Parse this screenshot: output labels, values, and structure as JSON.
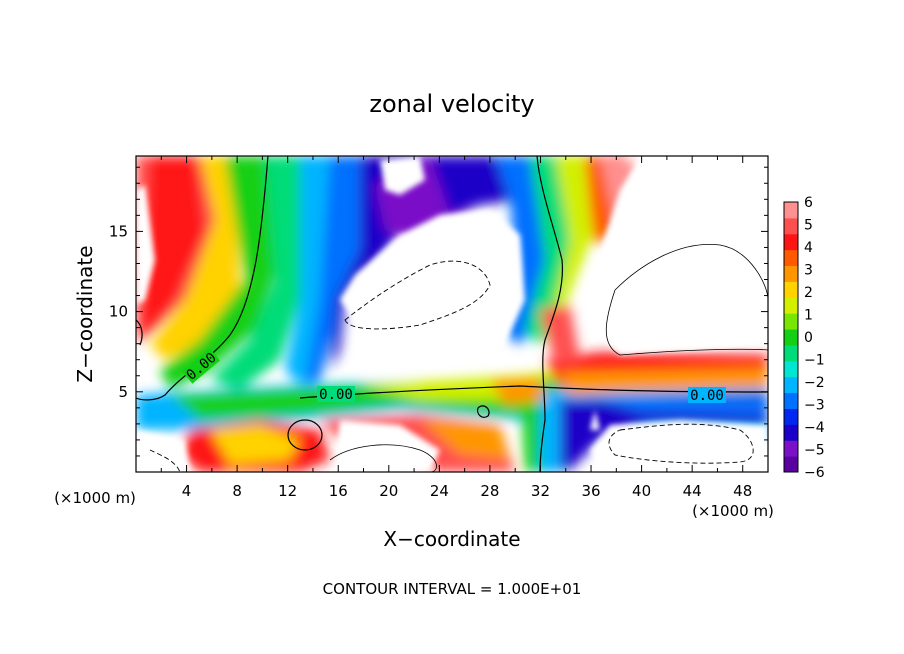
{
  "chart_data": {
    "type": "heatmap",
    "title": "zonal velocity",
    "xlabel": "X−coordinate",
    "ylabel": "Z−coordinate",
    "x_unit_label_left": "(×1000 m)",
    "x_unit_label_right": "(×1000 m)",
    "footer": "CONTOUR INTERVAL = 1.000E+01",
    "xlim": [
      0,
      50
    ],
    "ylim": [
      0,
      19.7
    ],
    "x_ticks": [
      "4",
      "8",
      "12",
      "16",
      "20",
      "24",
      "28",
      "32",
      "36",
      "40",
      "44",
      "48"
    ],
    "y_ticks": [
      "5",
      "10",
      "15"
    ],
    "colorbar": {
      "range": [
        -6,
        6
      ],
      "ticks": [
        "6",
        "5",
        "4",
        "3",
        "2",
        "1",
        "0",
        "−1",
        "−2",
        "−3",
        "−4",
        "−5",
        "−6"
      ],
      "colors": [
        "#5a00a0",
        "#7a10c8",
        "#1a00c8",
        "#0028f0",
        "#0070ff",
        "#00b4ff",
        "#00e6d2",
        "#00dc78",
        "#14d014",
        "#78e600",
        "#d2f000",
        "#ffd200",
        "#ff9600",
        "#ff5a00",
        "#ff1414",
        "#ff5050",
        "#ff9090"
      ]
    },
    "contour_labels": [
      "0.00",
      "0.00",
      "0.00"
    ],
    "grid": false
  }
}
